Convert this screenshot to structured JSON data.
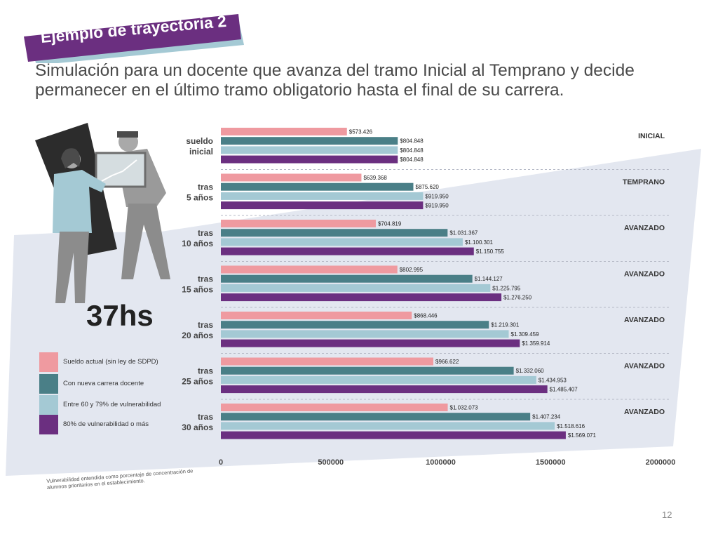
{
  "banner": {
    "title": "Ejemplo de trayectoria 2"
  },
  "subtitle": {
    "line1": "Simulación para un docente que avanza del tramo Inicial al Temprano y decide",
    "line2": "permanecer en el último tramo obligatorio hasta el final de su carrera."
  },
  "hours_label": "37hs",
  "legend": [
    {
      "label": "Sueldo actual (sin ley de SDPD)",
      "color": "#ef9aa0"
    },
    {
      "label": "Con nueva carrera docente",
      "color": "#4a7f87"
    },
    {
      "label": "Entre 60 y 79% de vulnerabilidad",
      "color": "#a4c9d4"
    },
    {
      "label": "80% de vulnerabilidad o más",
      "color": "#6b2f80"
    }
  ],
  "footnote": {
    "line1": "Vulnerabilidad entendida como porcentaje de concentración de",
    "line2": "alumnos prioritarios en el establecimiento."
  },
  "page_number": "12",
  "colors": {
    "banner": "#6b2f80",
    "banner_accent": "#a4c9d4",
    "background_band": "#e3e7f0",
    "figure_dark": "#2c2c2c"
  },
  "chart_data": {
    "type": "bar",
    "orientation": "horizontal",
    "categories": [
      [
        "sueldo",
        "inicial"
      ],
      [
        "tras",
        "5 años"
      ],
      [
        "tras",
        "10 años"
      ],
      [
        "tras",
        "15 años"
      ],
      [
        "tras",
        "20 años"
      ],
      [
        "tras",
        "25 años"
      ],
      [
        "tras",
        "30 años"
      ]
    ],
    "tiers": [
      "INICIAL",
      "TEMPRANO",
      "AVANZADO",
      "AVANZADO",
      "AVANZADO",
      "AVANZADO",
      "AVANZADO"
    ],
    "series": [
      {
        "name": "Sueldo actual (sin ley de SDPD)",
        "color": "#ef9aa0",
        "values": [
          573426,
          639368,
          704819,
          802995,
          868446,
          966622,
          1032073
        ],
        "labels": [
          "$573.426",
          "$639.368",
          "$704.819",
          "$802.995",
          "$868.446",
          "$966.622",
          "$1.032.073"
        ]
      },
      {
        "name": "Con nueva carrera docente",
        "color": "#4a7f87",
        "values": [
          804848,
          875620,
          1031367,
          1144127,
          1219301,
          1332060,
          1407234
        ],
        "labels": [
          "$804.848",
          "$875.620",
          "$1.031.367",
          "$1.144.127",
          "$1.219.301",
          "$1.332.060",
          "$1.407.234"
        ]
      },
      {
        "name": "Entre 60 y 79% de vulnerabilidad",
        "color": "#a4c9d4",
        "values": [
          804848,
          919950,
          1100301,
          1225795,
          1309459,
          1434953,
          1518616
        ],
        "labels": [
          "$804.848",
          "$919.950",
          "$1.100.301",
          "$1.225.795",
          "$1.309.459",
          "$1.434.953",
          "$1.518.616"
        ]
      },
      {
        "name": "80% de vulnerabilidad o más",
        "color": "#6b2f80",
        "values": [
          804848,
          919950,
          1150755,
          1276250,
          1359914,
          1485407,
          1569071
        ],
        "labels": [
          "$804.848",
          "$919.950",
          "$1.150.755",
          "$1.276.250",
          "$1.359.914",
          "$1.485.407",
          "$1.569.071"
        ]
      }
    ],
    "xlim": [
      0,
      2000000
    ],
    "xticks": [
      0,
      500000,
      1000000,
      1500000,
      2000000
    ],
    "xtick_labels": [
      "0",
      "500000",
      "1000000",
      "1500000",
      "2000000"
    ],
    "grid": false
  }
}
